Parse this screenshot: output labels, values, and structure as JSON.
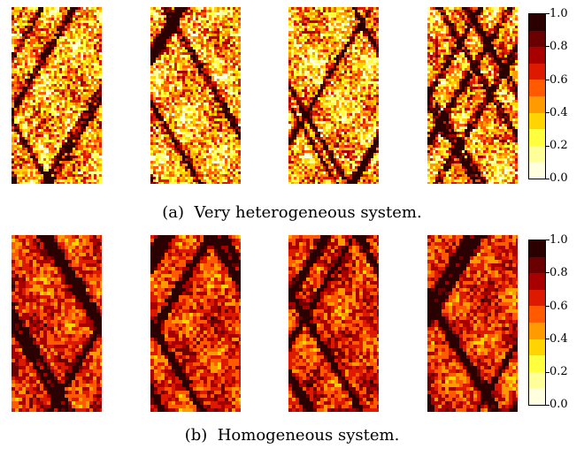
{
  "figure": {
    "rows": [
      {
        "id": "a",
        "label": "(a)",
        "caption": "Very heterogeneous system.",
        "style": "heterogeneous",
        "panels": 4,
        "colorbar_ticks": [
          "1.0",
          "0.8",
          "0.6",
          "0.4",
          "0.2",
          "0.0"
        ]
      },
      {
        "id": "b",
        "label": "(b)",
        "caption": "Homogeneous system.",
        "style": "homogeneous",
        "panels": 4,
        "colorbar_ticks": [
          "1.0",
          "0.8",
          "0.6",
          "0.4",
          "0.2",
          "0.0"
        ]
      }
    ],
    "colormap": [
      "#2a0000",
      "#6b0000",
      "#a80000",
      "#dd1a00",
      "#ff5a00",
      "#ff9a00",
      "#ffd400",
      "#ffff40",
      "#ffff99",
      "#ffffe0"
    ],
    "colormap_range": [
      0.0,
      1.0
    ]
  }
}
